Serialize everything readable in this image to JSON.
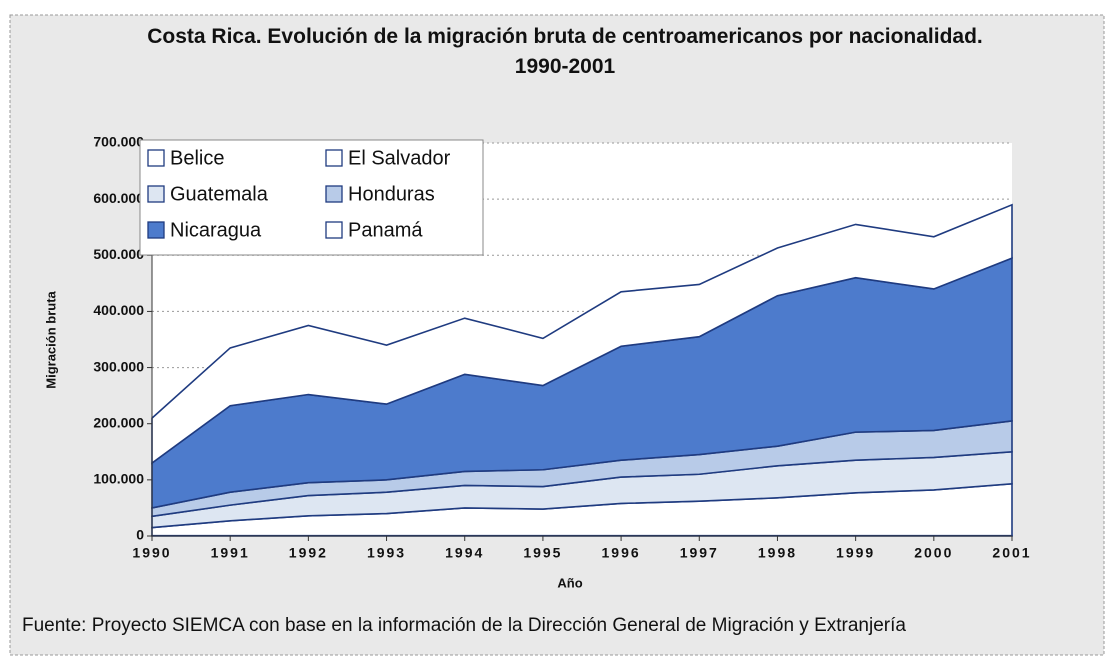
{
  "chart_data": {
    "type": "stacked_area",
    "title": "Costa Rica. Evolución de la migración bruta de centroamericanos por nacionalidad.",
    "subtitle": "1990-2001",
    "x_label": "Año",
    "y_label": "Migración bruta",
    "source": "Fuente: Proyecto SIEMCA con base en la información de la Dirección General de Migración y Extranjería",
    "categories": [
      "1990",
      "1991",
      "1992",
      "1993",
      "1994",
      "1995",
      "1996",
      "1997",
      "1998",
      "1999",
      "2000",
      "2001"
    ],
    "series": [
      {
        "name": "Belice",
        "color": "#ffffff",
        "values": [
          500,
          500,
          500,
          500,
          500,
          500,
          500,
          500,
          500,
          500,
          500,
          500
        ]
      },
      {
        "name": "El Salvador",
        "color": "#ffffff",
        "values": [
          14500,
          26500,
          35500,
          39500,
          49500,
          47500,
          57500,
          61500,
          67500,
          76500,
          81500,
          92500
        ]
      },
      {
        "name": "Guatemala",
        "color": "#dde6f2",
        "values": [
          20000,
          28000,
          36000,
          38000,
          40000,
          40000,
          47000,
          48000,
          57000,
          58000,
          58000,
          57000
        ]
      },
      {
        "name": "Honduras",
        "color": "#b8cbe8",
        "values": [
          15000,
          23000,
          23000,
          22000,
          25000,
          30000,
          30000,
          35000,
          35000,
          50000,
          48000,
          55000
        ]
      },
      {
        "name": "Nicaragua",
        "color": "#4d7bcc",
        "values": [
          80000,
          154000,
          157000,
          135000,
          173000,
          150000,
          203000,
          210000,
          268000,
          275000,
          252000,
          290000
        ]
      },
      {
        "name": "Panamá",
        "color": "#ffffff",
        "values": [
          80000,
          103000,
          123000,
          105000,
          100000,
          84000,
          97000,
          93000,
          85000,
          95000,
          93000,
          95000
        ]
      }
    ],
    "ylim": [
      0,
      700000
    ],
    "yticks": [
      0,
      {
        "value": 100000,
        "label": "100.000"
      },
      {
        "value": 200000,
        "label": "200.000"
      },
      {
        "value": 300000,
        "label": "300.000"
      },
      {
        "value": 400000,
        "label": "400.000"
      },
      {
        "value": 500000,
        "label": "500.000"
      },
      {
        "value": 600000,
        "label": "600.000"
      },
      {
        "value": 700000,
        "label": "700.000"
      }
    ],
    "grid": true,
    "legend": "upper left"
  }
}
